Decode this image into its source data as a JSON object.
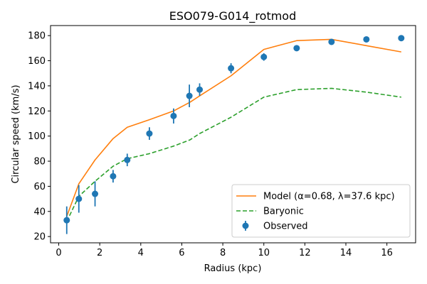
{
  "chart_data": {
    "type": "line",
    "title": "ESO079-G014_rotmod",
    "xlabel": "Radius (kpc)",
    "ylabel": "Circular speed (km/s)",
    "xlim": [
      -0.4,
      17.4
    ],
    "ylim": [
      15,
      188
    ],
    "xticks": [
      0,
      2,
      4,
      6,
      8,
      10,
      12,
      14,
      16
    ],
    "yticks": [
      20,
      40,
      60,
      80,
      100,
      120,
      140,
      160,
      180
    ],
    "grid": false,
    "legend_position": "lower-right",
    "series": [
      {
        "name": "Model (α=0.68, λ=37.6 kpc)",
        "style": "line",
        "color": "#ff7f0e",
        "x": [
          0.39,
          0.98,
          1.77,
          2.65,
          3.34,
          4.42,
          5.6,
          6.4,
          6.87,
          8.4,
          10.0,
          11.6,
          13.3,
          15.0,
          16.7
        ],
        "y": [
          36,
          62,
          81,
          98,
          107,
          113,
          120,
          127,
          132,
          148,
          169,
          176,
          177,
          172,
          167
        ]
      },
      {
        "name": "Baryonic",
        "style": "dashed",
        "color": "#2ca02c",
        "x": [
          0.39,
          0.98,
          1.77,
          2.65,
          3.34,
          4.42,
          5.6,
          6.4,
          6.87,
          8.4,
          10.0,
          11.6,
          13.3,
          15.0,
          16.7
        ],
        "y": [
          32,
          52,
          64,
          76,
          82,
          86,
          92,
          97,
          102,
          115,
          131,
          137,
          138,
          135,
          131
        ]
      },
      {
        "name": "Observed",
        "style": "errorbar",
        "color": "#1f77b4",
        "x": [
          0.39,
          0.98,
          1.77,
          2.65,
          3.34,
          4.42,
          5.6,
          6.37,
          6.87,
          8.4,
          10.0,
          11.6,
          13.3,
          15.0,
          16.7
        ],
        "y": [
          33,
          50,
          54,
          68,
          81,
          102,
          116,
          132,
          137,
          154,
          163,
          170,
          175,
          177,
          178
        ],
        "yerr": [
          11,
          11,
          10,
          5,
          5,
          5,
          6,
          9,
          5,
          4,
          3,
          2,
          2,
          2,
          2
        ]
      }
    ]
  }
}
